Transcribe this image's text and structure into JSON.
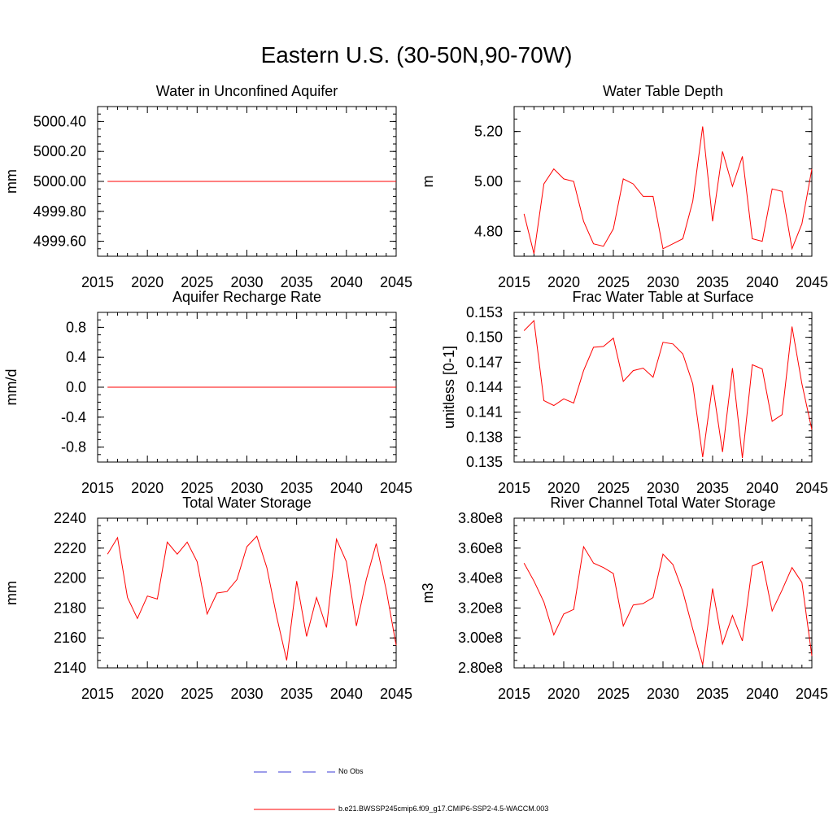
{
  "page": {
    "title": "Eastern U.S. (30-50N,90-70W)"
  },
  "legend": {
    "obs_label": "No Obs",
    "obs_color": "#3b3bd6",
    "model_label": "b.e21.BWSSP245cmip6.f09_g17.CMIP6-SSP2-4.5-WACCM.003",
    "model_color": "#ff0000"
  },
  "chart_data": [
    {
      "id": "aquifer-water",
      "type": "line",
      "title": "Water in Unconfined Aquifer",
      "xlabel": "",
      "ylabel": "mm",
      "xlim": [
        2015,
        2045
      ],
      "ylim": [
        4999.5,
        5000.5
      ],
      "xticks": [
        2015,
        2020,
        2025,
        2030,
        2035,
        2040,
        2045
      ],
      "yticks": [
        4999.6,
        4999.8,
        5000.0,
        5000.2,
        5000.4
      ],
      "ytick_labels": [
        "4999.60",
        "4999.80",
        "5000.00",
        "5000.20",
        "5000.40"
      ],
      "series": [
        {
          "name": "b.e21.BWSSP245cmip6.f09_g17.CMIP6-SSP2-4.5-WACCM.003",
          "x": [
            2016,
            2017,
            2018,
            2019,
            2020,
            2021,
            2022,
            2023,
            2024,
            2025,
            2026,
            2027,
            2028,
            2029,
            2030,
            2031,
            2032,
            2033,
            2034,
            2035,
            2036,
            2037,
            2038,
            2039,
            2040,
            2041,
            2042,
            2043,
            2044,
            2045
          ],
          "values": [
            5000,
            5000,
            5000,
            5000,
            5000,
            5000,
            5000,
            5000,
            5000,
            5000,
            5000,
            5000,
            5000,
            5000,
            5000,
            5000,
            5000,
            5000,
            5000,
            5000,
            5000,
            5000,
            5000,
            5000,
            5000,
            5000,
            5000,
            5000,
            5000,
            5000
          ]
        }
      ]
    },
    {
      "id": "water-table-depth",
      "type": "line",
      "title": "Water Table Depth",
      "xlabel": "",
      "ylabel": "m",
      "xlim": [
        2015,
        2045
      ],
      "ylim": [
        4.7,
        5.3
      ],
      "xticks": [
        2015,
        2020,
        2025,
        2030,
        2035,
        2040,
        2045
      ],
      "yticks": [
        4.8,
        5.0,
        5.2
      ],
      "ytick_labels": [
        "4.80",
        "5.00",
        "5.20"
      ],
      "series": [
        {
          "name": "b.e21.BWSSP245cmip6.f09_g17.CMIP6-SSP2-4.5-WACCM.003",
          "x": [
            2016,
            2017,
            2018,
            2019,
            2020,
            2021,
            2022,
            2023,
            2024,
            2025,
            2026,
            2027,
            2028,
            2029,
            2030,
            2031,
            2032,
            2033,
            2034,
            2035,
            2036,
            2037,
            2038,
            2039,
            2040,
            2041,
            2042,
            2043,
            2044,
            2045
          ],
          "values": [
            4.87,
            4.71,
            4.99,
            5.05,
            5.01,
            5.0,
            4.84,
            4.75,
            4.74,
            4.81,
            5.01,
            4.99,
            4.94,
            4.94,
            4.73,
            4.75,
            4.77,
            4.92,
            5.22,
            4.84,
            5.12,
            4.98,
            5.1,
            4.77,
            4.76,
            4.97,
            4.96,
            4.73,
            4.83,
            5.05
          ]
        }
      ]
    },
    {
      "id": "recharge-rate",
      "type": "line",
      "title": "Aquifer Recharge Rate",
      "xlabel": "",
      "ylabel": "mm/d",
      "xlim": [
        2015,
        2045
      ],
      "ylim": [
        -1.0,
        1.0
      ],
      "xticks": [
        2015,
        2020,
        2025,
        2030,
        2035,
        2040,
        2045
      ],
      "yticks": [
        -0.8,
        -0.4,
        0.0,
        0.4,
        0.8
      ],
      "ytick_labels": [
        "-0.8",
        "-0.4",
        "0.0",
        "0.4",
        "0.8"
      ],
      "series": [
        {
          "name": "b.e21.BWSSP245cmip6.f09_g17.CMIP6-SSP2-4.5-WACCM.003",
          "x": [
            2016,
            2017,
            2018,
            2019,
            2020,
            2021,
            2022,
            2023,
            2024,
            2025,
            2026,
            2027,
            2028,
            2029,
            2030,
            2031,
            2032,
            2033,
            2034,
            2035,
            2036,
            2037,
            2038,
            2039,
            2040,
            2041,
            2042,
            2043,
            2044,
            2045
          ],
          "values": [
            0,
            0,
            0,
            0,
            0,
            0,
            0,
            0,
            0,
            0,
            0,
            0,
            0,
            0,
            0,
            0,
            0,
            0,
            0,
            0,
            0,
            0,
            0,
            0,
            0,
            0,
            0,
            0,
            0,
            0
          ]
        }
      ]
    },
    {
      "id": "frac-water-table",
      "type": "line",
      "title": "Frac Water Table at Surface",
      "xlabel": "",
      "ylabel": "unitless [0-1]",
      "xlim": [
        2015,
        2045
      ],
      "ylim": [
        0.135,
        0.153
      ],
      "xticks": [
        2015,
        2020,
        2025,
        2030,
        2035,
        2040,
        2045
      ],
      "yticks": [
        0.135,
        0.138,
        0.141,
        0.144,
        0.147,
        0.15,
        0.153
      ],
      "ytick_labels": [
        "0.135",
        "0.138",
        "0.141",
        "0.144",
        "0.147",
        "0.150",
        "0.153"
      ],
      "series": [
        {
          "name": "b.e21.BWSSP245cmip6.f09_g17.CMIP6-SSP2-4.5-WACCM.003",
          "x": [
            2016,
            2017,
            2018,
            2019,
            2020,
            2021,
            2022,
            2023,
            2024,
            2025,
            2026,
            2027,
            2028,
            2029,
            2030,
            2031,
            2032,
            2033,
            2034,
            2035,
            2036,
            2037,
            2038,
            2039,
            2040,
            2041,
            2042,
            2043,
            2044,
            2045
          ],
          "values": [
            0.1508,
            0.152,
            0.1424,
            0.1418,
            0.1426,
            0.1421,
            0.146,
            0.1488,
            0.1489,
            0.1499,
            0.1447,
            0.146,
            0.1463,
            0.1452,
            0.1494,
            0.1492,
            0.148,
            0.1444,
            0.1356,
            0.1443,
            0.1362,
            0.1463,
            0.1355,
            0.1467,
            0.1462,
            0.1399,
            0.1407,
            0.1513,
            0.1444,
            0.1389
          ]
        }
      ]
    },
    {
      "id": "total-water-storage",
      "type": "line",
      "title": "Total Water Storage",
      "xlabel": "",
      "ylabel": "mm",
      "xlim": [
        2015,
        2045
      ],
      "ylim": [
        2140,
        2240
      ],
      "xticks": [
        2015,
        2020,
        2025,
        2030,
        2035,
        2040,
        2045
      ],
      "yticks": [
        2140,
        2160,
        2180,
        2200,
        2220,
        2240
      ],
      "ytick_labels": [
        "2140",
        "2160",
        "2180",
        "2200",
        "2220",
        "2240"
      ],
      "series": [
        {
          "name": "b.e21.BWSSP245cmip6.f09_g17.CMIP6-SSP2-4.5-WACCM.003",
          "x": [
            2016,
            2017,
            2018,
            2019,
            2020,
            2021,
            2022,
            2023,
            2024,
            2025,
            2026,
            2027,
            2028,
            2029,
            2030,
            2031,
            2032,
            2033,
            2034,
            2035,
            2036,
            2037,
            2038,
            2039,
            2040,
            2041,
            2042,
            2043,
            2044,
            2045
          ],
          "values": [
            2216,
            2227,
            2187,
            2173,
            2188,
            2186,
            2224,
            2216,
            2224,
            2211,
            2176,
            2190,
            2191,
            2199,
            2221,
            2228,
            2207,
            2174,
            2145,
            2198,
            2161,
            2187,
            2167,
            2226,
            2211,
            2168,
            2199,
            2223,
            2192,
            2155
          ]
        }
      ]
    },
    {
      "id": "river-channel-storage",
      "type": "line",
      "title": "River Channel Total Water Storage",
      "xlabel": "",
      "ylabel": "m3",
      "xlim": [
        2015,
        2045
      ],
      "ylim": [
        280000000.0,
        380000000.0
      ],
      "xticks": [
        2015,
        2020,
        2025,
        2030,
        2035,
        2040,
        2045
      ],
      "yticks": [
        280000000.0,
        300000000.0,
        320000000.0,
        340000000.0,
        360000000.0,
        380000000.0
      ],
      "ytick_labels": [
        "2.80e8",
        "3.00e8",
        "3.20e8",
        "3.40e8",
        "3.60e8",
        "3.80e8"
      ],
      "series": [
        {
          "name": "b.e21.BWSSP245cmip6.f09_g17.CMIP6-SSP2-4.5-WACCM.003",
          "x": [
            2016,
            2017,
            2018,
            2019,
            2020,
            2021,
            2022,
            2023,
            2024,
            2025,
            2026,
            2027,
            2028,
            2029,
            2030,
            2031,
            2032,
            2033,
            2034,
            2035,
            2036,
            2037,
            2038,
            2039,
            2040,
            2041,
            2042,
            2043,
            2044,
            2045
          ],
          "values": [
            350000000.0,
            338000000.0,
            324000000.0,
            302000000.0,
            316000000.0,
            319000000.0,
            361000000.0,
            350000000.0,
            347000000.0,
            343000000.0,
            308000000.0,
            322000000.0,
            323000000.0,
            327000000.0,
            356000000.0,
            349000000.0,
            331000000.0,
            306000000.0,
            282000000.0,
            333000000.0,
            296000000.0,
            315000000.0,
            298000000.0,
            348000000.0,
            351000000.0,
            318000000.0,
            332000000.0,
            347000000.0,
            337000000.0,
            288000000.0
          ]
        }
      ]
    }
  ]
}
